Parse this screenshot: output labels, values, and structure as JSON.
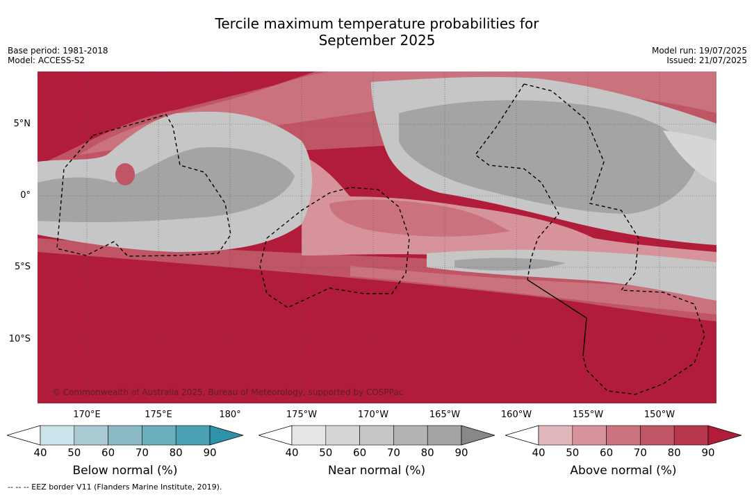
{
  "title_line1": "Tercile maximum temperature probabilities for",
  "title_line2": "September 2025",
  "base_period": "Base period: 1981-2018",
  "model": "Model: ACCESS-S2",
  "model_run": "Model run: 19/07/2025",
  "issued": "Issued: 21/07/2025",
  "credit": "© Commonwealth of Australia 2025, Bureau of Meteorology, supported by COSPPac",
  "footnote": "-- -- -- EEZ border V11 (Flanders Marine Institute, 2019).",
  "lat_labels": [
    "5°N",
    "0°",
    "5°S",
    "10°S"
  ],
  "lon_labels": [
    "170°E",
    "175°E",
    "180°",
    "175°W",
    "170°W",
    "165°W",
    "160°W",
    "155°W",
    "150°W"
  ],
  "colorbars": [
    {
      "title": "Below normal (%)",
      "ticks": [
        "40",
        "50",
        "60",
        "70",
        "80",
        "90"
      ],
      "colors": [
        "#ffffff",
        "#cbe3ea",
        "#a9cad2",
        "#8ab9c5",
        "#6aaebd",
        "#4aa1b3",
        "#2e93a8"
      ]
    },
    {
      "title": "Near normal (%)",
      "ticks": [
        "40",
        "50",
        "60",
        "70",
        "80",
        "90"
      ],
      "colors": [
        "#ffffff",
        "#e6e6e6",
        "#d6d6d6",
        "#c6c6c6",
        "#b4b4b4",
        "#a4a4a4",
        "#888888"
      ]
    },
    {
      "title": "Above normal (%)",
      "ticks": [
        "40",
        "50",
        "60",
        "70",
        "80",
        "90"
      ],
      "colors": [
        "#ffffff",
        "#e2b7bc",
        "#d6939c",
        "#ca737f",
        "#c05566",
        "#b7384d",
        "#b01c3a"
      ]
    }
  ]
}
